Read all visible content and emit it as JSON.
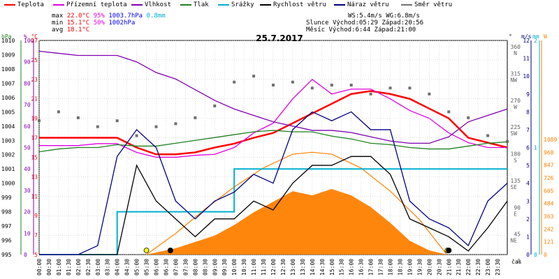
{
  "legend": [
    {
      "label": "Teplota",
      "color": "#ff0000"
    },
    {
      "label": "Přízemní teplota",
      "color": "#e000e0"
    },
    {
      "label": "Vlhkost",
      "color": "#8000b0"
    },
    {
      "label": "Tlak",
      "color": "#208020"
    },
    {
      "label": "Srážky",
      "color": "#00b0d0"
    },
    {
      "label": "Rychlost větru",
      "color": "#000000"
    },
    {
      "label": "Náraz větru",
      "color": "#000080"
    },
    {
      "label": "Směr větru",
      "color": "#707070"
    }
  ],
  "stats": {
    "max_label": "max",
    "max_temp": "22.0°C",
    "max_hum": "95%",
    "max_press": "1003.7hPa",
    "max_rain": "0.8mm",
    "min_label": "min",
    "min_temp": "15.1°C",
    "min_hum": "50%",
    "min_press": "1002hPa",
    "avg_label": "avg",
    "avg_temp": "18.1°C"
  },
  "wind_info": {
    "ws": "WS:5.4m/s",
    "wg": "WG:6.8m/s",
    "sun_label": "Slunce",
    "sun_rise": "Východ:05:29",
    "sun_set": "Západ:20:56",
    "moon_label": "Měsíc",
    "moon_rise": "Východ:6:44",
    "moon_set": "Západ:21:00"
  },
  "title": "25.7.2017",
  "axes": {
    "hpa_unit": "hPa",
    "pct_unit": "%",
    "c_unit": "°C",
    "deg_unit": "°",
    "ms_unit": "m/s",
    "mm_unit": "mm",
    "w_unit": "W",
    "x_label": "čas",
    "hpa_ticks": [
      "1010",
      "1009",
      "1008",
      "1007",
      "1006",
      "1005",
      "1004",
      "1003",
      "1002",
      "1001",
      "1000",
      "999",
      "998",
      "997",
      "996",
      "995"
    ],
    "pct_ticks": [
      "100",
      "90",
      "80",
      "70",
      "60",
      "50",
      "40",
      "30",
      "20",
      "10",
      "0"
    ],
    "c_ticks": [
      "27",
      "25",
      "23",
      "21",
      "19",
      "17",
      "15",
      "13",
      "11",
      "9",
      "7",
      "5"
    ],
    "deg_ticks": [
      {
        "v": "360",
        "d": "N"
      },
      {
        "v": "315",
        "d": "NW"
      },
      {
        "v": "270",
        "d": "W"
      },
      {
        "v": "225",
        "d": "SW"
      },
      {
        "v": "180",
        "d": "S"
      },
      {
        "v": "135",
        "d": "SE"
      },
      {
        "v": "90",
        "d": "E"
      },
      {
        "v": "45",
        "d": "NE"
      },
      {
        "v": "0",
        "d": ""
      }
    ],
    "ms_ticks": [
      "12",
      "11",
      "10",
      "9",
      "8",
      "7",
      "6",
      "5",
      "4",
      "3",
      "2",
      "1",
      "0"
    ],
    "mm_ticks": [
      "2",
      "1",
      "0"
    ],
    "w_ticks": [
      "1089",
      "968",
      "847",
      "726",
      "605",
      "484",
      "363",
      "242",
      "121",
      "0"
    ],
    "time_ticks": [
      "00:00",
      "00:30",
      "01:00",
      "01:30",
      "02:00",
      "02:30",
      "03:00",
      "03:30",
      "04:00",
      "04:30",
      "05:00",
      "05:30",
      "06:00",
      "06:30",
      "07:00",
      "07:30",
      "08:00",
      "08:30",
      "09:00",
      "09:30",
      "10:00",
      "10:30",
      "11:00",
      "11:30",
      "12:00",
      "12:30",
      "13:00",
      "13:30",
      "14:00",
      "14:30",
      "15:00",
      "15:30",
      "16:00",
      "16:30",
      "17:00",
      "17:30",
      "18:00",
      "18:30",
      "19:00",
      "19:30",
      "20:00",
      "20:30",
      "21:00",
      "21:30",
      "22:00",
      "22:30",
      "23:00",
      "23:30"
    ]
  },
  "chart_data": {
    "type": "line",
    "title": "25.7.2017",
    "xlabel": "čas",
    "x_hours": [
      0,
      1,
      2,
      3,
      4,
      5,
      6,
      7,
      8,
      9,
      10,
      11,
      12,
      13,
      14,
      15,
      16,
      17,
      18,
      19,
      20,
      21,
      22,
      23,
      24
    ],
    "series": [
      {
        "name": "Teplota",
        "unit": "°C",
        "color": "#ff0000",
        "values": [
          17,
          17,
          17,
          17,
          17,
          16,
          15.3,
          15.3,
          15.5,
          16,
          16.4,
          17,
          17.5,
          18.5,
          19.5,
          20.5,
          21.5,
          21.8,
          21.5,
          21,
          20,
          19,
          17,
          16.5,
          16
        ]
      },
      {
        "name": "Přízemní teplota",
        "unit": "°C",
        "color": "#e000e0",
        "values": [
          16.2,
          16.2,
          16.2,
          16.4,
          16.4,
          15.5,
          15,
          15,
          15.2,
          15.3,
          16,
          17.5,
          18.5,
          21,
          23,
          21.5,
          22,
          22,
          21,
          19.8,
          19,
          17.5,
          16.5,
          16,
          16
        ]
      },
      {
        "name": "Vlhkost",
        "unit": "%",
        "color": "#8000b0",
        "values": [
          95,
          94,
          93,
          93,
          93,
          90,
          85,
          82,
          77,
          72,
          68,
          65,
          62,
          60,
          58,
          58,
          57,
          55,
          53,
          52,
          52,
          55,
          62,
          65,
          68
        ]
      },
      {
        "name": "Tlak",
        "unit": "hPa",
        "color": "#208020",
        "values": [
          1002.2,
          1002.4,
          1002.5,
          1002.5,
          1002.7,
          1002.6,
          1002.6,
          1002.8,
          1003,
          1003.2,
          1003.4,
          1003.6,
          1003.7,
          1003.6,
          1003.6,
          1003.3,
          1003.1,
          1002.8,
          1002.7,
          1002.5,
          1002.4,
          1002.4,
          1002.6,
          1002.8,
          1002.9
        ]
      },
      {
        "name": "Srážky",
        "unit": "mm",
        "color": "#00b0d0",
        "values": [
          0,
          0,
          0,
          0,
          0.4,
          0.4,
          0.4,
          0.4,
          0.4,
          0.4,
          0.8,
          0.8,
          0.8,
          0.8,
          0.8,
          0.8,
          0.8,
          0.8,
          0.8,
          0.8,
          0.8,
          0.8,
          0.8,
          0.8,
          0.8
        ]
      },
      {
        "name": "Rychlost větru",
        "unit": "m/s",
        "color": "#000000",
        "values": [
          0,
          0,
          0,
          0,
          0,
          5,
          3,
          2,
          1,
          2,
          2,
          3,
          2.5,
          4,
          5,
          5,
          5.5,
          5.5,
          4.5,
          2,
          1.5,
          1,
          0.2,
          1.5,
          3
        ]
      },
      {
        "name": "Náraz větru",
        "unit": "m/s",
        "color": "#000080",
        "values": [
          0,
          0,
          0,
          0.5,
          5.5,
          7,
          6,
          3,
          2,
          3,
          3.5,
          4.5,
          4,
          7,
          8,
          7.5,
          8,
          7,
          7,
          3,
          2,
          1.5,
          0.5,
          3,
          4
        ]
      },
      {
        "name": "Směr větru",
        "unit": "°",
        "color": "#707070",
        "values": [
          225,
          240,
          230,
          215,
          225,
          200,
          215,
          220,
          230,
          250,
          290,
          300,
          285,
          290,
          280,
          285,
          285,
          270,
          280,
          280,
          270,
          240,
          230,
          200,
          190
        ]
      }
    ],
    "solar_radiation": {
      "unit": "W",
      "x_hours": [
        5.5,
        7,
        8,
        9,
        10,
        11,
        12,
        13,
        14,
        15,
        16,
        17,
        18,
        19,
        20,
        20.9
      ],
      "values": [
        0,
        60,
        120,
        180,
        280,
        400,
        500,
        600,
        560,
        620,
        560,
        450,
        300,
        130,
        40,
        0
      ]
    },
    "sun_curve": {
      "unit": "W",
      "x_hours": [
        5.5,
        7,
        8.5,
        10,
        11.5,
        13,
        14,
        15,
        16.5,
        18,
        19.5,
        20.9
      ],
      "values": [
        0,
        200,
        430,
        640,
        820,
        950,
        968,
        950,
        820,
        600,
        330,
        0
      ]
    }
  }
}
